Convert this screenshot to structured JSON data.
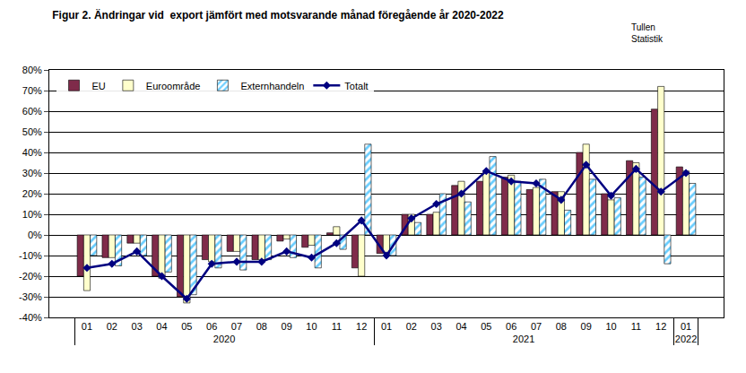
{
  "chart_data": {
    "type": "bar",
    "title": "Figur 2. Ändringar vid  export jämfört med motsvarande månad föregående år 2020-2022",
    "annotations": [
      "Tullen",
      "Statistik"
    ],
    "categories": [
      "01",
      "02",
      "03",
      "04",
      "05",
      "06",
      "07",
      "08",
      "09",
      "10",
      "11",
      "12",
      "01",
      "02",
      "03",
      "04",
      "05",
      "06",
      "07",
      "08",
      "09",
      "10",
      "11",
      "12",
      "01"
    ],
    "years": [
      "2020",
      "2020",
      "2020",
      "2020",
      "2020",
      "2020",
      "2020",
      "2020",
      "2020",
      "2020",
      "2020",
      "2020",
      "2021",
      "2021",
      "2021",
      "2021",
      "2021",
      "2021",
      "2021",
      "2021",
      "2021",
      "2021",
      "2021",
      "2021",
      "2022"
    ],
    "series": [
      {
        "name": "EU",
        "type": "bar",
        "color": "#7f2b4a",
        "values": [
          -20,
          -11,
          -4,
          -20,
          -30,
          -12,
          -8,
          -12,
          -3,
          -6,
          1,
          -16,
          -9,
          10,
          10,
          24,
          26,
          28,
          22,
          21,
          40,
          20,
          36,
          61,
          33
        ]
      },
      {
        "name": "Euroområde",
        "type": "bar",
        "color": "#ffffcc",
        "values": [
          -27,
          -11,
          -4,
          -21,
          -33,
          -13,
          -8,
          -12,
          -2,
          -5,
          4,
          -20,
          -9,
          10,
          11,
          26,
          31,
          29,
          23,
          21,
          44,
          17,
          35,
          72,
          31
        ]
      },
      {
        "name": "Externhandeln",
        "type": "bar",
        "color": "#66ccff",
        "marker": "hatched",
        "values": [
          -10,
          -15,
          -10,
          -18,
          -29,
          -16,
          -17,
          -12,
          -11,
          -16,
          -7,
          44,
          -10,
          6,
          20,
          16,
          38,
          26,
          27,
          12,
          27,
          18,
          28,
          -14,
          25
        ]
      },
      {
        "name": "Totalt",
        "type": "line",
        "color": "#000080",
        "marker": "diamond",
        "line_style": "solid",
        "values": [
          -16,
          -14,
          -8,
          -20,
          -31,
          -14,
          -13,
          -13,
          -8,
          -11,
          -4,
          7,
          -10,
          8,
          15,
          20,
          31,
          26,
          25,
          17,
          34,
          19,
          32,
          21,
          30
        ]
      }
    ],
    "ylim": [
      -40,
      80
    ],
    "yticks": [
      {
        "value": -40,
        "label": "-40%"
      },
      {
        "value": -30,
        "label": "-30%"
      },
      {
        "value": -20,
        "label": "-20%"
      },
      {
        "value": -10,
        "label": "-10%"
      },
      {
        "value": 0,
        "label": "0%"
      },
      {
        "value": 10,
        "label": "10%"
      },
      {
        "value": 20,
        "label": "20%"
      },
      {
        "value": 30,
        "label": "30%"
      },
      {
        "value": 40,
        "label": "40%"
      },
      {
        "value": 50,
        "label": "50%"
      },
      {
        "value": 60,
        "label": "60%"
      },
      {
        "value": 70,
        "label": "70%"
      },
      {
        "value": 80,
        "label": "80%"
      }
    ],
    "grid": true,
    "legend": "top-left"
  }
}
